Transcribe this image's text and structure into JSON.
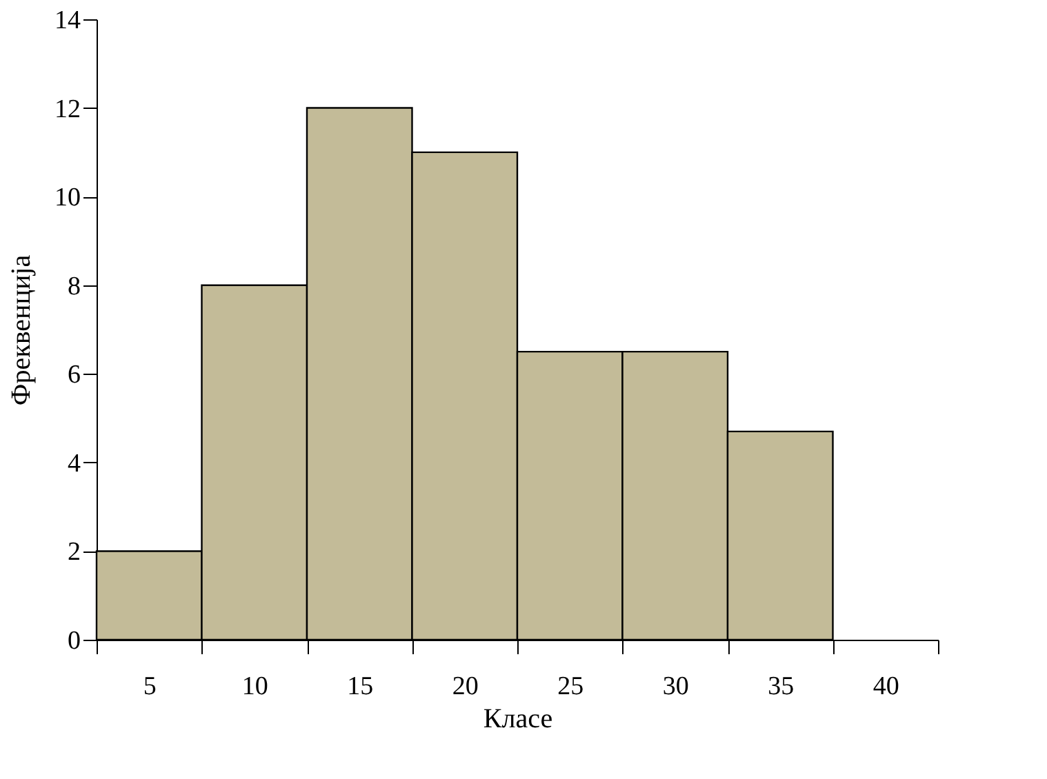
{
  "chart_data": {
    "type": "bar",
    "xlabel": "Класе",
    "ylabel": "Фреквенција",
    "categories": [
      "5",
      "10",
      "15",
      "20",
      "25",
      "30",
      "35",
      "40"
    ],
    "values": [
      2,
      8,
      12,
      11,
      6.5,
      6.5,
      4.7,
      null
    ],
    "color": "#c3bb98",
    "ylim": [
      0,
      14
    ],
    "yticks": [
      0,
      2,
      4,
      6,
      8,
      10,
      12,
      14
    ],
    "grid": false
  }
}
